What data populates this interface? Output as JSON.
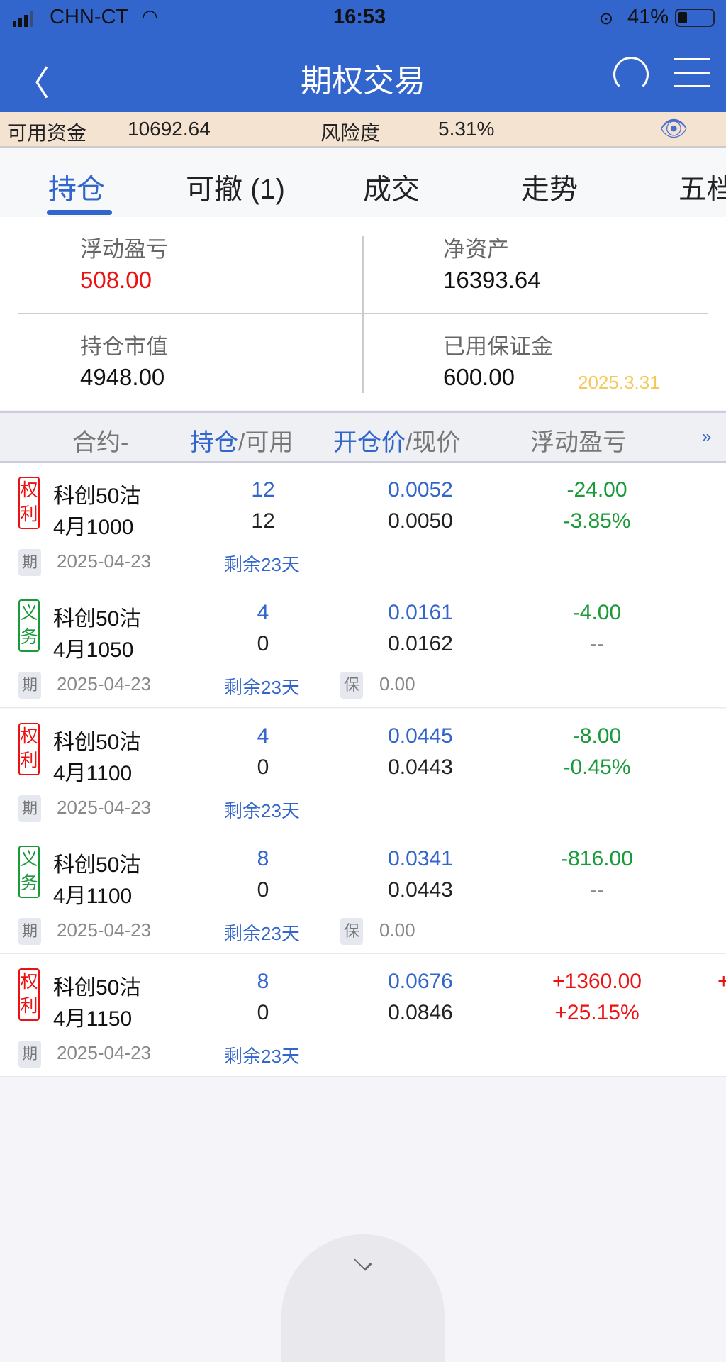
{
  "status_bar": {
    "carrier": "CHN-CT",
    "time": "16:53",
    "battery": "41%"
  },
  "nav": {
    "title": "期权交易",
    "back_icon": "chevron-left-icon",
    "refresh_icon": "refresh-icon",
    "menu_icon": "menu-icon"
  },
  "account": {
    "available_label": "可用资金",
    "available": "10692.64",
    "risk_label": "风险度",
    "risk": "5.31%",
    "eye_icon": "eye-icon"
  },
  "tabs": [
    {
      "label": "持仓",
      "active": true
    },
    {
      "label": "可撤 (1)"
    },
    {
      "label": "成交"
    },
    {
      "label": "走势"
    },
    {
      "label": "五档"
    }
  ],
  "summary": {
    "float_pnl_label": "浮动盈亏",
    "float_pnl": "508.00",
    "net_assets_label": "净资产",
    "net_assets": "16393.64",
    "market_value_label": "持仓市值",
    "market_value": "4948.00",
    "margin_used_label": "已用保证金",
    "margin_used": "600.00",
    "date": "2025.3.31"
  },
  "table_header": {
    "contract": "合约-",
    "position": "持仓",
    "available": "/可用",
    "open_price": "开仓价",
    "current_price": "/现价",
    "pnl": "浮动盈亏",
    "more": "»"
  },
  "colors": {
    "primary": "#3366cc",
    "up": "#ee1111",
    "down": "#1a9a3a"
  },
  "rows": [
    {
      "type": "权利",
      "name": "科创50沽",
      "month": "4月1000",
      "position": "12",
      "available": "12",
      "open_price": "0.0052",
      "current_price": "0.0050",
      "pnl": "-24.00",
      "pnl_pct": "-3.85%",
      "dir": "down",
      "expiry_tag": "期",
      "expiry": "2025-04-23",
      "remain": "剩余23天"
    },
    {
      "type": "义务",
      "name": "科创50沽",
      "month": "4月1050",
      "position": "4",
      "available": "0",
      "open_price": "0.0161",
      "current_price": "0.0162",
      "pnl": "-4.00",
      "pnl_pct": "--",
      "dir": "down",
      "expiry_tag": "期",
      "expiry": "2025-04-23",
      "remain": "剩余23天",
      "margin_tag": "保",
      "margin": "0.00"
    },
    {
      "type": "权利",
      "name": "科创50沽",
      "month": "4月1100",
      "position": "4",
      "available": "0",
      "open_price": "0.0445",
      "current_price": "0.0443",
      "pnl": "-8.00",
      "pnl_pct": "-0.45%",
      "dir": "down",
      "expiry_tag": "期",
      "expiry": "2025-04-23",
      "remain": "剩余23天"
    },
    {
      "type": "义务",
      "name": "科创50沽",
      "month": "4月1100",
      "position": "8",
      "available": "0",
      "open_price": "0.0341",
      "current_price": "0.0443",
      "pnl": "-816.00",
      "pnl_pct": "--",
      "dir": "down",
      "expiry_tag": "期",
      "expiry": "2025-04-23",
      "remain": "剩余23天",
      "margin_tag": "保",
      "margin": "0.00"
    },
    {
      "type": "权利",
      "name": "科创50沽",
      "month": "4月1150",
      "position": "8",
      "available": "0",
      "open_price": "0.0676",
      "current_price": "0.0846",
      "pnl": "+1360.00",
      "pnl_pct": "+25.15%",
      "dir": "up",
      "expiry_tag": "期",
      "expiry": "2025-04-23",
      "remain": "剩余23天",
      "extra": "+"
    }
  ],
  "bottom": {
    "collapse_icon": "chevron-down-icon"
  }
}
